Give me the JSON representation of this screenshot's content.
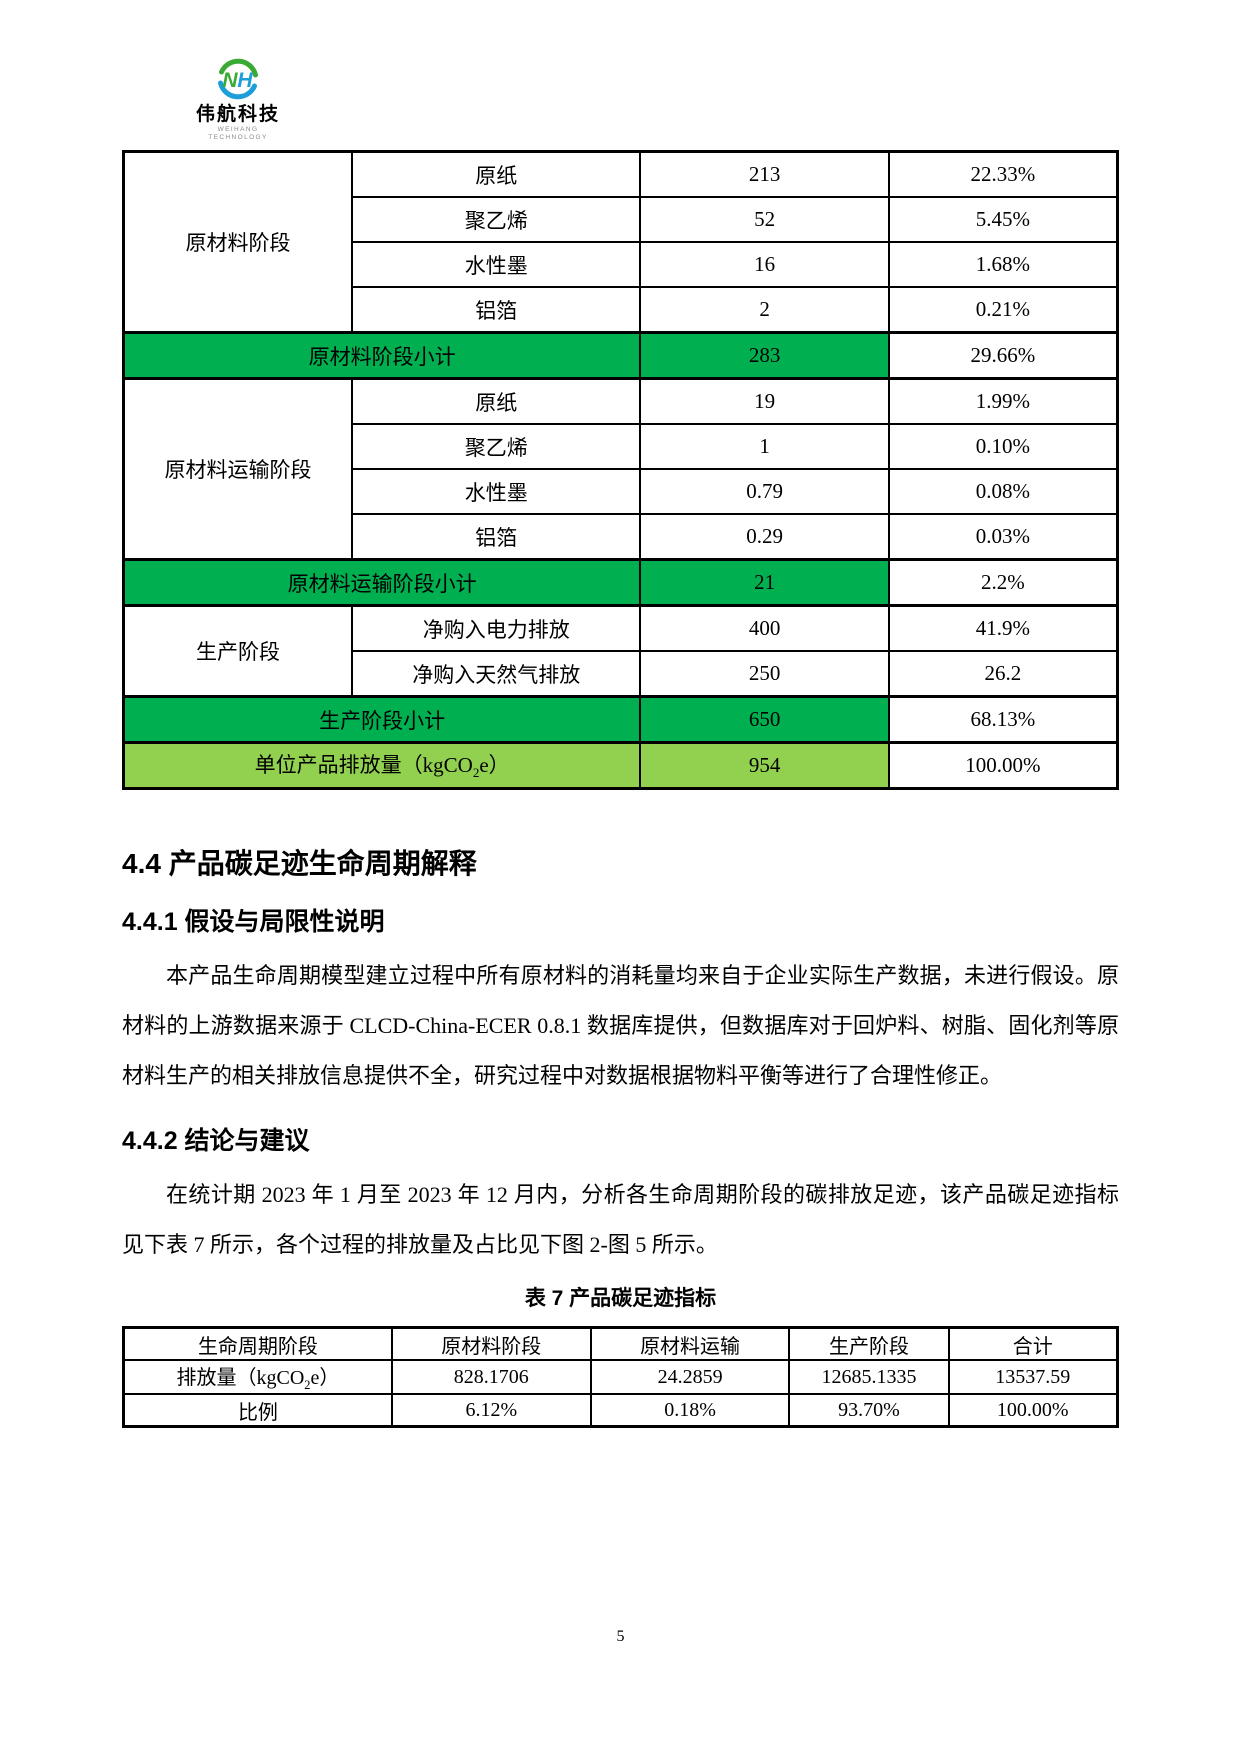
{
  "logo": {
    "monogram_n": "N",
    "monogram_h": "H",
    "brand": "伟航科技",
    "brand_en": "WEIHANG TECHNOLOGY"
  },
  "colors": {
    "subtotal_green": "#00B050",
    "total_green": "#92D050",
    "logo_green": "#3aaa35",
    "logo_blue": "#1e9ed9"
  },
  "emissions_table": {
    "rows": [
      {
        "cells": [
          {
            "t": "原材料阶段",
            "rowspan": 4
          },
          {
            "t": "原纸"
          },
          {
            "t": "213"
          },
          {
            "t": "22.33%"
          }
        ]
      },
      {
        "cells": [
          {
            "t": "聚乙烯"
          },
          {
            "t": "52"
          },
          {
            "t": "5.45%"
          }
        ]
      },
      {
        "cells": [
          {
            "t": "水性墨"
          },
          {
            "t": "16"
          },
          {
            "t": "1.68%"
          }
        ]
      },
      {
        "cells": [
          {
            "t": "铝箔"
          },
          {
            "t": "2"
          },
          {
            "t": "0.21%"
          }
        ]
      },
      {
        "subtotal": true,
        "cells": [
          {
            "t": "原材料阶段小计",
            "colspan": 2,
            "cls": "fill-green"
          },
          {
            "t": "283",
            "cls": "fill-green"
          },
          {
            "t": "29.66%"
          }
        ]
      },
      {
        "cells": [
          {
            "t": "原材料运输阶段",
            "rowspan": 4
          },
          {
            "t": "原纸"
          },
          {
            "t": "19"
          },
          {
            "t": "1.99%"
          }
        ]
      },
      {
        "cells": [
          {
            "t": "聚乙烯"
          },
          {
            "t": "1"
          },
          {
            "t": "0.10%"
          }
        ]
      },
      {
        "cells": [
          {
            "t": "水性墨"
          },
          {
            "t": "0.79"
          },
          {
            "t": "0.08%"
          }
        ]
      },
      {
        "cells": [
          {
            "t": "铝箔"
          },
          {
            "t": "0.29"
          },
          {
            "t": "0.03%"
          }
        ]
      },
      {
        "subtotal": true,
        "cells": [
          {
            "t": "原材料运输阶段小计",
            "colspan": 2,
            "cls": "fill-green"
          },
          {
            "t": "21",
            "cls": "fill-green"
          },
          {
            "t": "2.2%"
          }
        ]
      },
      {
        "cells": [
          {
            "t": "生产阶段",
            "rowspan": 2
          },
          {
            "t": "净购入电力排放"
          },
          {
            "t": "400"
          },
          {
            "t": "41.9%"
          }
        ]
      },
      {
        "cells": [
          {
            "t": "净购入天然气排放"
          },
          {
            "t": "250"
          },
          {
            "t": "26.2"
          }
        ]
      },
      {
        "subtotal": true,
        "cells": [
          {
            "t": "生产阶段小计",
            "colspan": 2,
            "cls": "fill-green"
          },
          {
            "t": "650",
            "cls": "fill-green"
          },
          {
            "t": "68.13%"
          }
        ]
      },
      {
        "subtotal": true,
        "cells": [
          {
            "t": "单位产品排放量（kgCO2e）",
            "colspan": 2,
            "cls": "fill-light"
          },
          {
            "t": "954",
            "cls": "fill-light"
          },
          {
            "t": "100.00%"
          }
        ]
      }
    ]
  },
  "sections": {
    "s44_title": "4.4 产品碳足迹生命周期解释",
    "s441_title": "4.4.1 假设与局限性说明",
    "s441_paragraph": "本产品生命周期模型建立过程中所有原材料的消耗量均来自于企业实际生产数据，未进行假设。原材料的上游数据来源于 CLCD-China-ECER 0.8.1 数据库提供，但数据库对于回炉料、树脂、固化剂等原材料生产的相关排放信息提供不全，研究过程中对数据根据物料平衡等进行了合理性修正。",
    "s442_title": "4.4.2 结论与建议",
    "s442_paragraph": "在统计期 2023 年 1 月至 2023 年 12 月内，分析各生命周期阶段的碳排放足迹，该产品碳足迹指标见下表 7 所示，各个过程的排放量及占比见下图 2-图 5 所示。"
  },
  "table7": {
    "caption": "表 7 产品碳足迹指标",
    "headers": [
      "生命周期阶段",
      "原材料阶段",
      "原材料运输",
      "生产阶段",
      "合计"
    ],
    "rows": [
      [
        "排放量（kgCO2e）",
        "828.1706",
        "24.2859",
        "12685.1335",
        "13537.59"
      ],
      [
        "比例",
        "6.12%",
        "0.18%",
        "93.70%",
        "100.00%"
      ]
    ]
  },
  "footer": {
    "page_number": "5"
  }
}
